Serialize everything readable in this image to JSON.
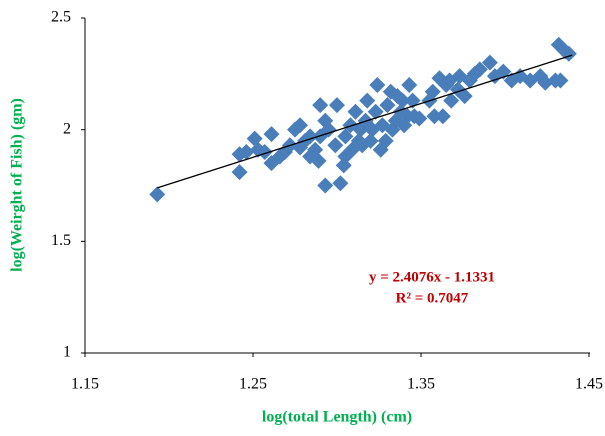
{
  "chart_data": {
    "type": "scatter",
    "x_label": "log(total Length) (cm)",
    "y_label": "log(Weirght of Fish) (gm)",
    "annotation": [
      "y = 2.4076x - 1.1331",
      "R² = 0.7047"
    ],
    "xlim": [
      1.15,
      1.45
    ],
    "xticks": [
      1.15,
      1.25,
      1.35,
      1.45
    ],
    "ylim": [
      1,
      2.5
    ],
    "yticks": [
      1,
      1.5,
      2,
      2.5
    ],
    "color": "#4a7ebb",
    "trendline": {
      "slope": 2.4076,
      "intercept": -1.1331,
      "x": [
        1.193,
        1.44
      ],
      "color": "#000000"
    },
    "x": [
      1.193,
      1.242,
      1.242,
      1.246,
      1.251,
      1.253,
      1.257,
      1.261,
      1.261,
      1.266,
      1.269,
      1.272,
      1.275,
      1.278,
      1.278,
      1.281,
      1.284,
      1.284,
      1.287,
      1.289,
      1.29,
      1.29,
      1.293,
      1.293,
      1.295,
      1.299,
      1.3,
      1.302,
      1.304,
      1.305,
      1.305,
      1.308,
      1.309,
      1.311,
      1.313,
      1.314,
      1.315,
      1.317,
      1.318,
      1.32,
      1.321,
      1.323,
      1.324,
      1.326,
      1.327,
      1.329,
      1.33,
      1.332,
      1.333,
      1.335,
      1.336,
      1.338,
      1.339,
      1.34,
      1.342,
      1.343,
      1.345,
      1.346,
      1.349,
      1.355,
      1.357,
      1.358,
      1.361,
      1.363,
      1.365,
      1.367,
      1.368,
      1.372,
      1.373,
      1.376,
      1.379,
      1.382,
      1.385,
      1.391,
      1.394,
      1.399,
      1.404,
      1.409,
      1.415,
      1.421,
      1.424,
      1.43,
      1.433,
      1.432,
      1.436,
      1.438
    ],
    "values": [
      1.71,
      1.89,
      1.81,
      1.9,
      1.96,
      1.91,
      1.9,
      1.98,
      1.85,
      1.88,
      1.9,
      1.93,
      2.0,
      2.02,
      1.92,
      1.95,
      1.88,
      1.97,
      1.91,
      1.86,
      2.11,
      1.97,
      1.75,
      2.04,
      2.0,
      1.93,
      2.11,
      1.76,
      1.84,
      1.88,
      1.97,
      2.02,
      1.91,
      2.08,
      1.95,
      2.0,
      1.93,
      2.04,
      2.13,
      1.95,
      2.0,
      2.08,
      2.2,
      1.91,
      2.02,
      1.95,
      2.11,
      2.17,
      2.0,
      2.04,
      2.15,
      2.08,
      2.13,
      2.02,
      2.06,
      2.2,
      2.13,
      2.06,
      2.05,
      2.13,
      2.17,
      2.06,
      2.23,
      2.06,
      2.2,
      2.22,
      2.13,
      2.18,
      2.24,
      2.15,
      2.22,
      2.25,
      2.27,
      2.3,
      2.24,
      2.26,
      2.22,
      2.24,
      2.22,
      2.24,
      2.21,
      2.22,
      2.22,
      2.38,
      2.35,
      2.34
    ]
  }
}
